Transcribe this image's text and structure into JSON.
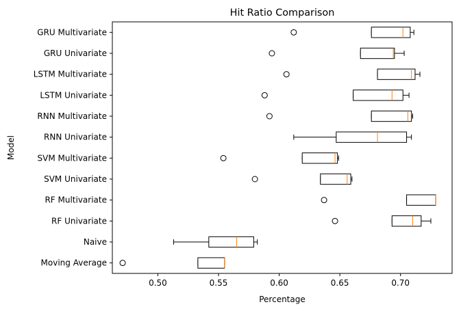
{
  "chart_data": {
    "type": "boxplot",
    "orientation": "horizontal",
    "title": "Hit Ratio Comparison",
    "xlabel": "Percentage",
    "ylabel": "Model",
    "xlim": [
      0.4625,
      0.7425
    ],
    "xticks": [
      0.5,
      0.55,
      0.6,
      0.65,
      0.7
    ],
    "xtick_labels": [
      "0.50",
      "0.55",
      "0.60",
      "0.65",
      "0.70"
    ],
    "grid": false,
    "colors": {
      "box": "#000000",
      "median": "#ff7f0e",
      "background": "#ffffff"
    },
    "categories": [
      "Moving Average",
      "Naive",
      "RF Univariate",
      "RF Multivariate",
      "SVM Univariate",
      "SVM Multivariate",
      "RNN Univariate",
      "RNN Multivariate",
      "LSTM Univariate",
      "LSTM Multivariate",
      "GRU Univariate",
      "GRU Multivariate"
    ],
    "boxes": [
      {
        "category": "Moving Average",
        "whislo": 0.533,
        "q1": 0.533,
        "med": 0.555,
        "q3": 0.555,
        "whishi": 0.555,
        "fliers": [
          0.471
        ]
      },
      {
        "category": "Naive",
        "whislo": 0.513,
        "q1": 0.542,
        "med": 0.565,
        "q3": 0.579,
        "whishi": 0.582,
        "fliers": []
      },
      {
        "category": "RF Univariate",
        "whislo": 0.693,
        "q1": 0.693,
        "med": 0.71,
        "q3": 0.717,
        "whishi": 0.725,
        "fliers": [
          0.646
        ]
      },
      {
        "category": "RF Multivariate",
        "whislo": 0.705,
        "q1": 0.705,
        "med": 0.729,
        "q3": 0.729,
        "whishi": 0.729,
        "fliers": [
          0.637
        ]
      },
      {
        "category": "SVM Univariate",
        "whislo": 0.634,
        "q1": 0.634,
        "med": 0.656,
        "q3": 0.659,
        "whishi": 0.66,
        "fliers": [
          0.58
        ]
      },
      {
        "category": "SVM Multivariate",
        "whislo": 0.619,
        "q1": 0.619,
        "med": 0.646,
        "q3": 0.648,
        "whishi": 0.649,
        "fliers": [
          0.554
        ]
      },
      {
        "category": "RNN Univariate",
        "whislo": 0.612,
        "q1": 0.647,
        "med": 0.681,
        "q3": 0.705,
        "whishi": 0.709,
        "fliers": []
      },
      {
        "category": "RNN Multivariate",
        "whislo": 0.676,
        "q1": 0.676,
        "med": 0.706,
        "q3": 0.709,
        "whishi": 0.71,
        "fliers": [
          0.592
        ]
      },
      {
        "category": "LSTM Univariate",
        "whislo": 0.661,
        "q1": 0.661,
        "med": 0.693,
        "q3": 0.702,
        "whishi": 0.707,
        "fliers": [
          0.588
        ]
      },
      {
        "category": "LSTM Multivariate",
        "whislo": 0.681,
        "q1": 0.681,
        "med": 0.709,
        "q3": 0.712,
        "whishi": 0.716,
        "fliers": [
          0.606
        ]
      },
      {
        "category": "GRU Univariate",
        "whislo": 0.667,
        "q1": 0.667,
        "med": 0.694,
        "q3": 0.695,
        "whishi": 0.703,
        "fliers": [
          0.594
        ]
      },
      {
        "category": "GRU Multivariate",
        "whislo": 0.676,
        "q1": 0.676,
        "med": 0.702,
        "q3": 0.708,
        "whishi": 0.711,
        "fliers": [
          0.612
        ]
      }
    ]
  }
}
